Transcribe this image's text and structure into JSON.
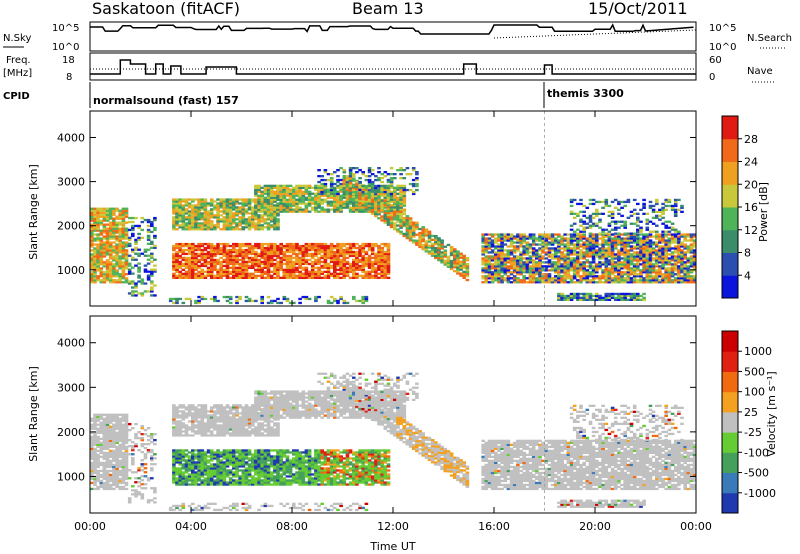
{
  "header": {
    "station": "Saskatoon (fitACF)",
    "beam": "Beam 13",
    "date": "15/Oct/2011"
  },
  "nsky_panel": {
    "left_label": "N.Sky",
    "right_label": "N.Search",
    "left_ticks": [
      "10^5",
      "10^0"
    ],
    "right_ticks": [
      "10^5",
      "10^0"
    ]
  },
  "freq_panel": {
    "left_label_line1": "Freq.",
    "left_label_line2": "[MHz]",
    "right_label": "Nave",
    "left_ticks": [
      "18",
      "8"
    ],
    "right_ticks": [
      "60",
      "0"
    ]
  },
  "cpid": {
    "label": "CPID",
    "modes": [
      {
        "start_hour": 0.0,
        "text": "normalsound (fast) 157"
      },
      {
        "start_hour": 18.0,
        "text": "themis 3300"
      }
    ]
  },
  "chart_data": [
    {
      "type": "heatmap",
      "name": "power",
      "ylabel": "Slant Range [km]",
      "colorbar_label": "Power [dB]",
      "x_range_hours": [
        0,
        24
      ],
      "ylim": [
        180,
        4600
      ],
      "y_ticks": [
        "1000",
        "2000",
        "3000",
        "4000"
      ],
      "colorbar_ticks": [
        "4",
        "8",
        "12",
        "16",
        "20",
        "24",
        "28"
      ],
      "colorbar_range": [
        0,
        32
      ],
      "colorbar_colors": [
        "#0a14dc",
        "#2a4fb0",
        "#3a8c6a",
        "#4fb35a",
        "#c8c83a",
        "#f0a020",
        "#f06a1a",
        "#e21a14"
      ]
    },
    {
      "type": "heatmap",
      "name": "velocity",
      "ylabel": "Slant Range [km]",
      "colorbar_label": "Velocity [m s⁻¹]",
      "x_range_hours": [
        0,
        24
      ],
      "ylim": [
        180,
        4600
      ],
      "y_ticks": [
        "1000",
        "2000",
        "3000",
        "4000"
      ],
      "colorbar_ticks": [
        "1000",
        "500",
        "100",
        "25",
        "-25",
        "-100",
        "-500",
        "-1000"
      ],
      "colorbar_colors": [
        "#2038b0",
        "#3a7ab8",
        "#44a05a",
        "#66cc33",
        "#c0c0c0",
        "#f4a020",
        "#f06a10",
        "#e02010",
        "#cc0000"
      ]
    }
  ],
  "x_axis": {
    "label": "Time UT",
    "ticks": [
      "00:00",
      "04:00",
      "08:00",
      "12:00",
      "16:00",
      "20:00",
      "00:00"
    ]
  }
}
